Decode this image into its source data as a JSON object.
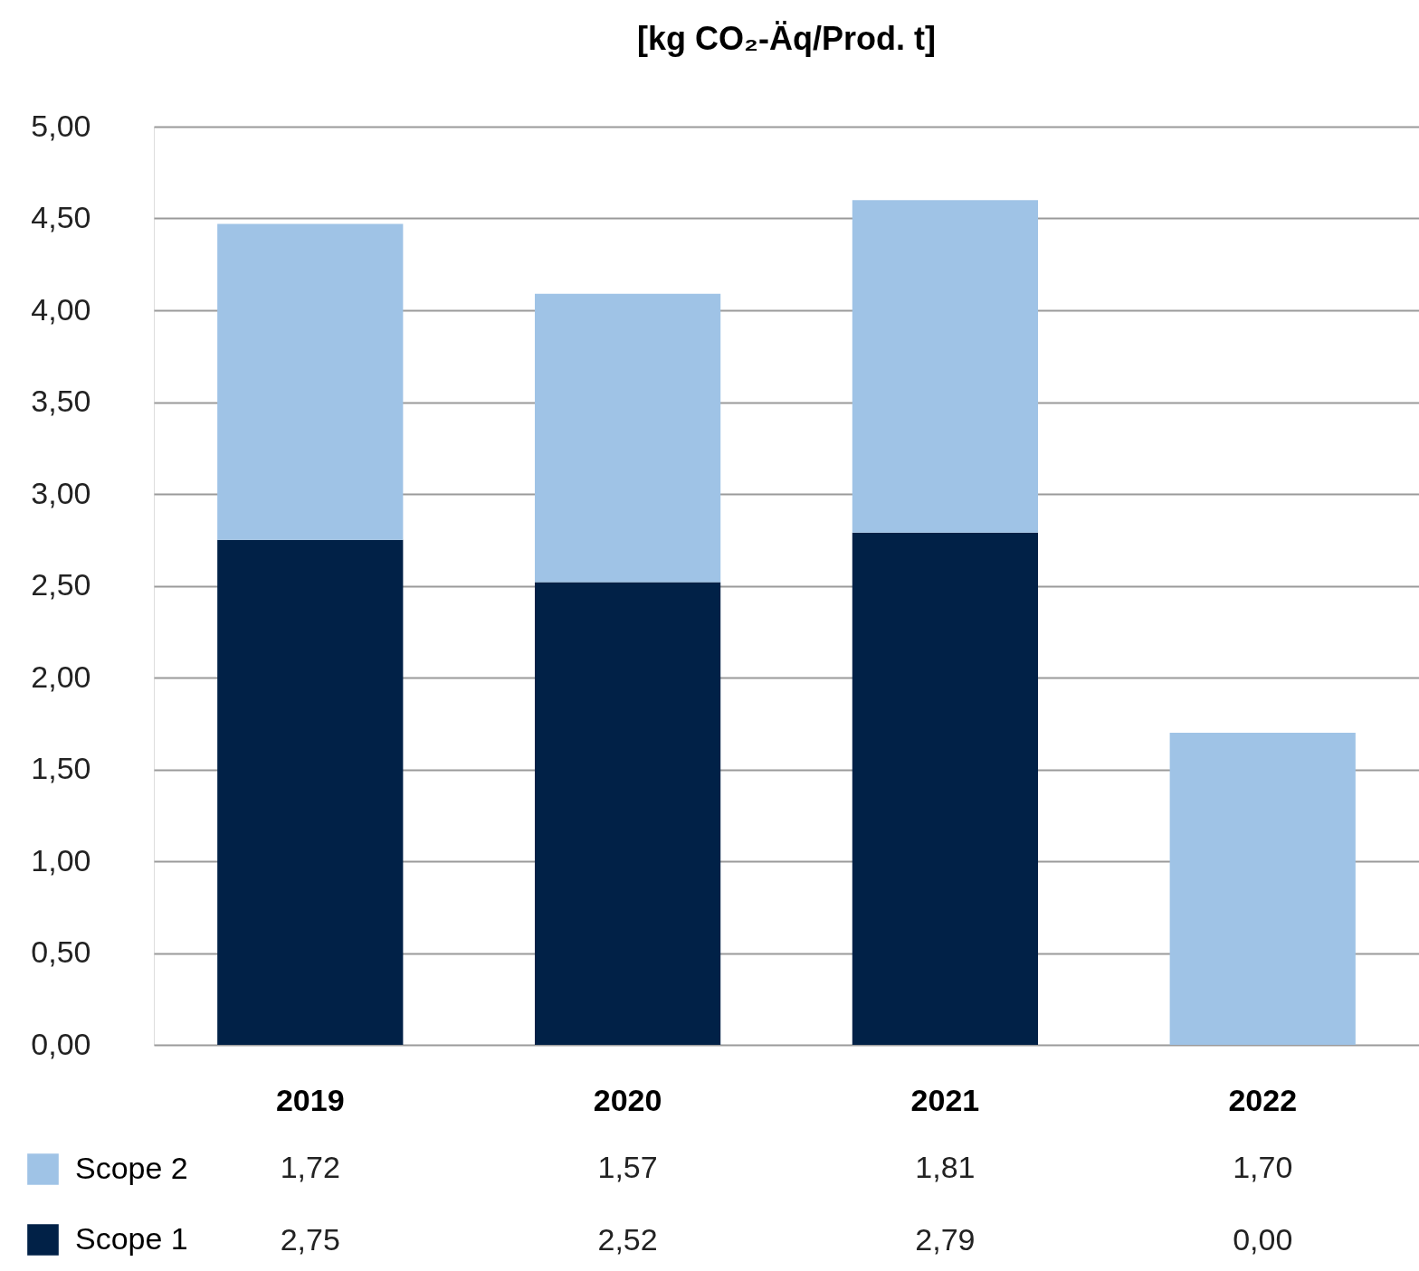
{
  "chart_data": {
    "type": "bar",
    "title": "[kg CO₂-Äq/Prod. t]",
    "categories": [
      "2019",
      "2020",
      "2021",
      "2022"
    ],
    "stacked": true,
    "series": [
      {
        "name": "Scope 1",
        "color": "#012147",
        "values": [
          2.75,
          2.52,
          2.79,
          0.0
        ],
        "value_labels": [
          "2,75",
          "2,52",
          "2,79",
          "0,00"
        ]
      },
      {
        "name": "Scope 2",
        "color": "#9fc3e6",
        "values": [
          1.72,
          1.57,
          1.81,
          1.7
        ],
        "value_labels": [
          "1,72",
          "1,57",
          "1,81",
          "1,70"
        ]
      }
    ],
    "ylim": [
      0,
      5
    ],
    "yticks": [
      {
        "value": 0,
        "label": "0,00"
      },
      {
        "value": 0.5,
        "label": "0,50"
      },
      {
        "value": 1,
        "label": "1,00"
      },
      {
        "value": 1.5,
        "label": "1,50"
      },
      {
        "value": 2,
        "label": "2,00"
      },
      {
        "value": 2.5,
        "label": "2,50"
      },
      {
        "value": 3,
        "label": "3,00"
      },
      {
        "value": 3.5,
        "label": "3,50"
      },
      {
        "value": 4,
        "label": "4,00"
      },
      {
        "value": 4.5,
        "label": "4,50"
      },
      {
        "value": 5,
        "label": "5,00"
      }
    ],
    "grid": "y",
    "legend": "bottom left"
  }
}
